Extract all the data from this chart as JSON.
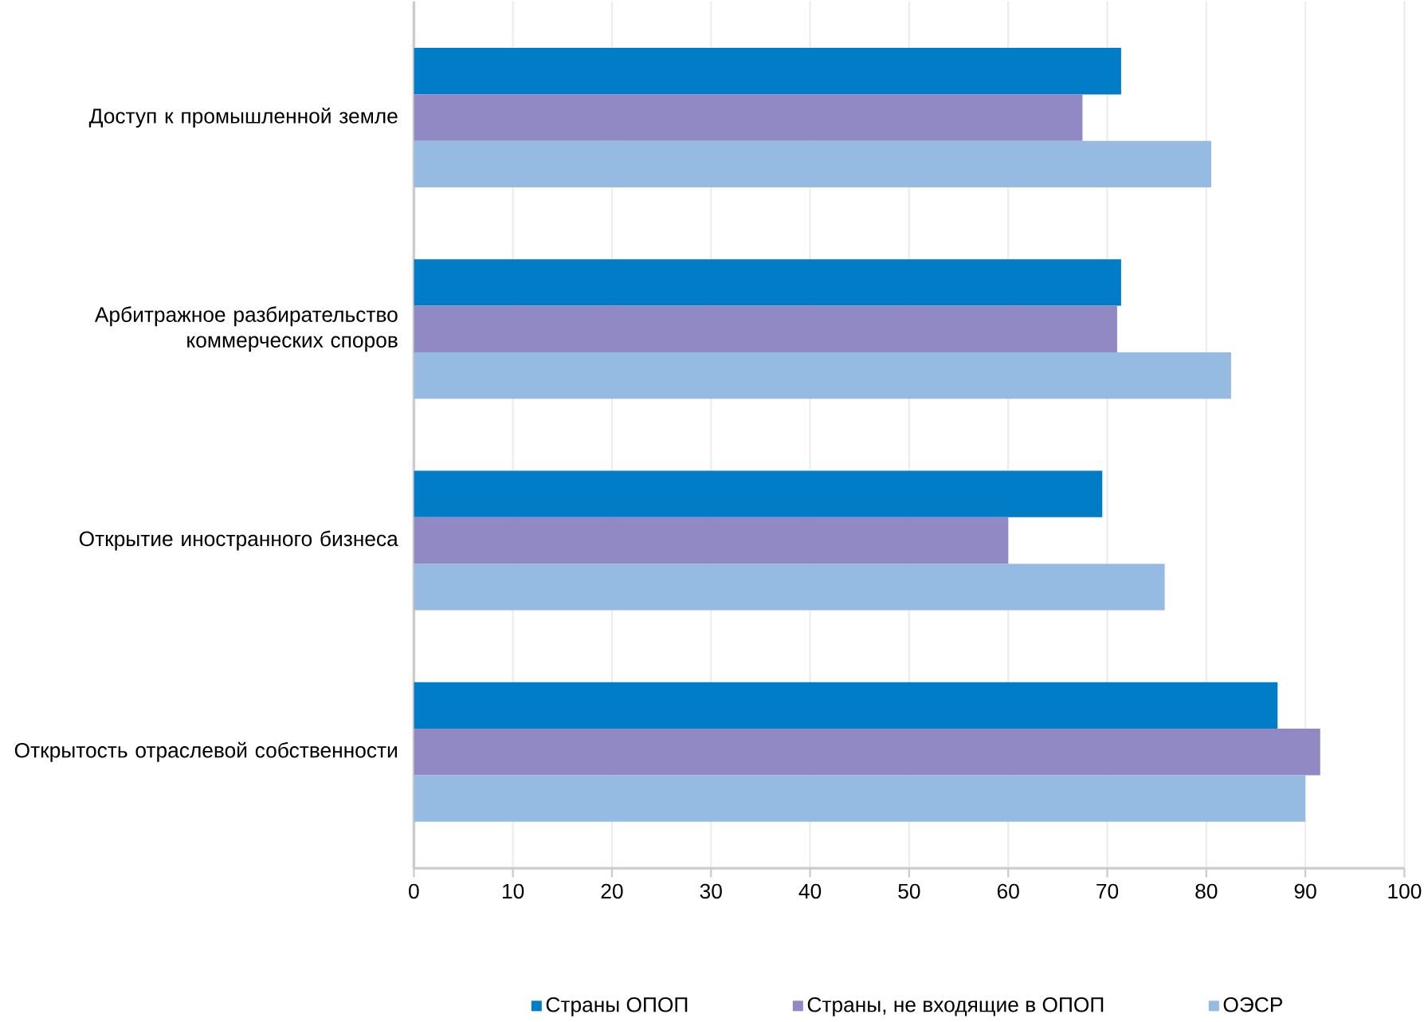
{
  "chart_data": {
    "type": "bar",
    "orientation": "horizontal",
    "categories": [
      "Доступ к промышленной земле",
      "Арбитражное разбирательство коммерческих споров",
      "Открытие иностранного бизнеса",
      "Открытость отраслевой собственности"
    ],
    "series": [
      {
        "name": "Страны ОПОП",
        "color": "#007dc6",
        "values": [
          71.4,
          71.4,
          69.5,
          87.2
        ]
      },
      {
        "name": "Страны, не входящие в ОПОП",
        "color": "#9189c3",
        "values": [
          67.5,
          71.0,
          60.0,
          91.5
        ]
      },
      {
        "name": "ОЭСР",
        "color": "#95bbe3",
        "values": [
          80.5,
          82.5,
          75.8,
          90.0
        ]
      }
    ],
    "xlim": [
      0,
      100
    ],
    "xticks": [
      0,
      10,
      20,
      30,
      40,
      50,
      60,
      70,
      80,
      90,
      100
    ],
    "grid": "x",
    "legend": "bottom"
  }
}
